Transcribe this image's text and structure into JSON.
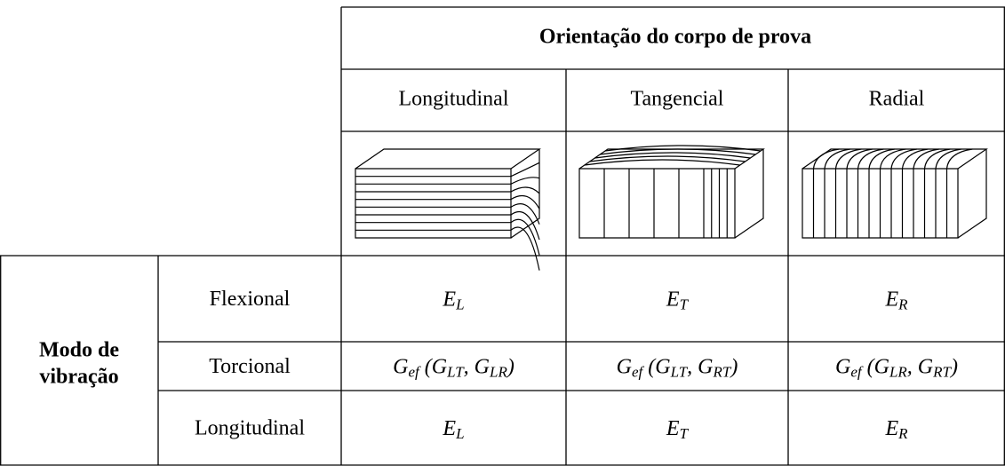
{
  "table": {
    "title": "Orientação do corpo de prova",
    "columns": [
      "Longitudinal",
      "Tangencial",
      "Radial"
    ],
    "row_group": [
      "Modo de",
      "vibração"
    ],
    "rows": [
      {
        "label": "Flexional",
        "cells": [
          [
            {
              "text": "E",
              "sub": "L"
            }
          ],
          [
            {
              "text": "E",
              "sub": "T"
            }
          ],
          [
            {
              "text": "E",
              "sub": "R"
            }
          ]
        ]
      },
      {
        "label": "Torcional",
        "cells": [
          [
            {
              "text": "G",
              "sub": "ef"
            },
            {
              "text": " (G",
              "sub": "LT"
            },
            {
              "text": ", G",
              "sub": "LR"
            },
            {
              "text": ")"
            }
          ],
          [
            {
              "text": "G",
              "sub": "ef"
            },
            {
              "text": " (G",
              "sub": "LT"
            },
            {
              "text": ", G",
              "sub": "RT"
            },
            {
              "text": ")"
            }
          ],
          [
            {
              "text": "G",
              "sub": "ef"
            },
            {
              "text": " (G",
              "sub": "LR"
            },
            {
              "text": ", G",
              "sub": "RT"
            },
            {
              "text": ")"
            }
          ]
        ]
      },
      {
        "label": "Longitudinal",
        "cells": [
          [
            {
              "text": "E",
              "sub": "L"
            }
          ],
          [
            {
              "text": "E",
              "sub": "T"
            }
          ],
          [
            {
              "text": "E",
              "sub": "R"
            }
          ]
        ]
      }
    ]
  }
}
